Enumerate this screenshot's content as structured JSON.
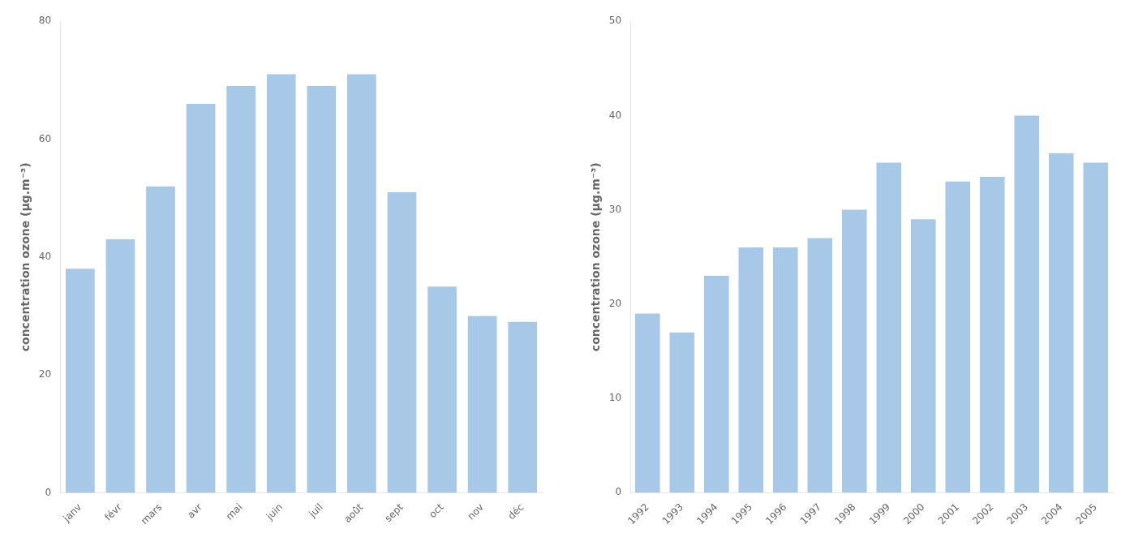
{
  "chart_data": [
    {
      "type": "bar",
      "ylabel": "concentration ozone (µg.m⁻³)",
      "categories": [
        "janv",
        "févr",
        "mars",
        "avr",
        "mai",
        "juin",
        "juil",
        "août",
        "sept",
        "oct",
        "nov",
        "déc"
      ],
      "values": [
        38,
        43,
        52,
        66,
        69,
        71,
        69,
        71,
        51,
        35,
        30,
        29
      ],
      "color": "#a8c8e8",
      "ylim": [
        0,
        80
      ],
      "yticks": [
        0,
        20,
        40,
        60,
        80
      ],
      "grid": false
    },
    {
      "type": "bar",
      "ylabel": "concentration ozone (µg.m⁻³)",
      "categories": [
        "1992",
        "1993",
        "1994",
        "1995",
        "1996",
        "1997",
        "1998",
        "1999",
        "2000",
        "2001",
        "2002",
        "2003",
        "2004",
        "2005"
      ],
      "values": [
        19,
        17,
        23,
        26,
        26,
        27,
        30,
        35,
        29,
        33,
        33.5,
        40,
        36,
        35
      ],
      "color": "#a8c8e8",
      "ylim": [
        0,
        50
      ],
      "yticks": [
        0,
        10,
        20,
        30,
        40,
        50
      ],
      "grid": false
    }
  ]
}
